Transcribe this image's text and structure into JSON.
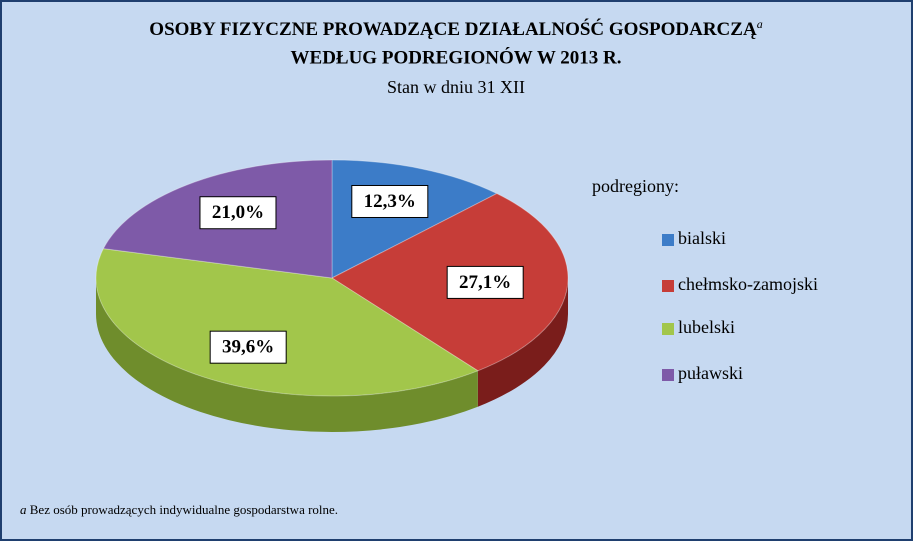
{
  "chart_data": {
    "type": "pie",
    "title": [
      "OSOBY FIZYCZNE PROWADZĄCE DZIAŁALNOŚĆ GOSPODARCZĄ",
      "WEDŁUG PODREGIONÓW W 2013 R."
    ],
    "title_marker": "a",
    "subtitle": "Stan w dniu 31 XII",
    "legend_title": "podregiony:",
    "categories": [
      "bialski",
      "chełmsko-zamojski",
      "lubelski",
      "puławski"
    ],
    "values": [
      12.3,
      27.1,
      39.6,
      21.0
    ],
    "value_labels": [
      "12,3%",
      "27,1%",
      "39,6%",
      "21,0%"
    ],
    "colors": [
      "#3c7cc8",
      "#c63d38",
      "#a2c64b",
      "#7e5aa8"
    ],
    "side_colors": [
      "#2a5a96",
      "#7a1d1b",
      "#6f8d2c",
      "#553c76"
    ],
    "footnote": {
      "marker": "a",
      "text": "Bez osób prowadzących  indywidualne gospodarstwa rolne."
    }
  }
}
